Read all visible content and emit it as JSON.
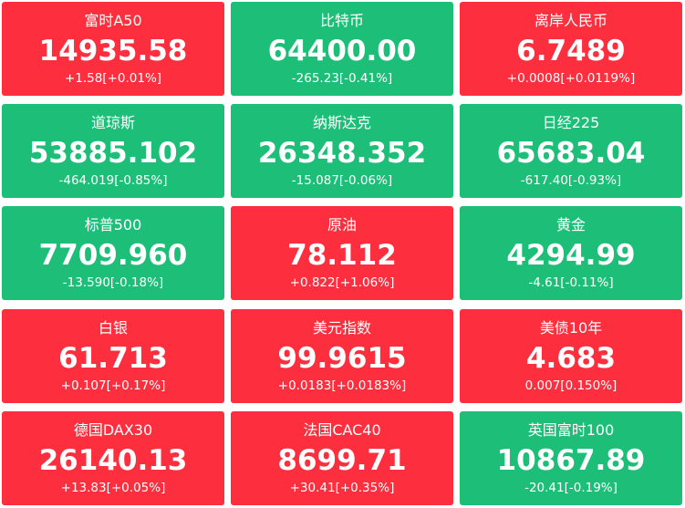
{
  "tiles": [
    {
      "name": "富时A50",
      "price": "14935.58",
      "change": "+1.58[+0.01%]",
      "color": "#fd2e3e"
    },
    {
      "name": "比特币",
      "price": "64400.00",
      "change": "-265.23[-0.41%]",
      "color": "#1dbf78"
    },
    {
      "name": "离岸人民币",
      "price": "6.7489",
      "change": "+0.0008[+0.0119%]",
      "color": "#fd2e3e"
    },
    {
      "name": "道琼斯",
      "price": "53885.102",
      "change": "-464.019[-0.85%]",
      "color": "#1dbf78"
    },
    {
      "name": "纳斯达克",
      "price": "26348.352",
      "change": "-15.087[-0.06%]",
      "color": "#1dbf78"
    },
    {
      "name": "日经225",
      "price": "65683.04",
      "change": "-617.40[-0.93%]",
      "color": "#1dbf78"
    },
    {
      "name": "标普500",
      "price": "7709.960",
      "change": "-13.590[-0.18%]",
      "color": "#1dbf78"
    },
    {
      "name": "原油",
      "price": "78.112",
      "change": "+0.822[+1.06%]",
      "color": "#fd2e3e"
    },
    {
      "name": "黄金",
      "price": "4294.99",
      "change": "-4.61[-0.11%]",
      "color": "#1dbf78"
    },
    {
      "name": "白银",
      "price": "61.713",
      "change": "+0.107[+0.17%]",
      "color": "#fd2e3e"
    },
    {
      "name": "美元指数",
      "price": "99.9615",
      "change": "+0.0183[+0.0183%]",
      "color": "#fd2e3e"
    },
    {
      "name": "美债10年",
      "price": "4.683",
      "change": "0.007[0.150%]",
      "color": "#fd2e3e"
    },
    {
      "name": "德国DAX30",
      "price": "26140.13",
      "change": "+13.83[+0.05%]",
      "color": "#fd2e3e"
    },
    {
      "name": "法国CAC40",
      "price": "8699.71",
      "change": "+30.41[+0.35%]",
      "color": "#fd2e3e"
    },
    {
      "name": "英国富时100",
      "price": "10867.89",
      "change": "-20.41[-0.19%]",
      "color": "#1dbf78"
    }
  ]
}
